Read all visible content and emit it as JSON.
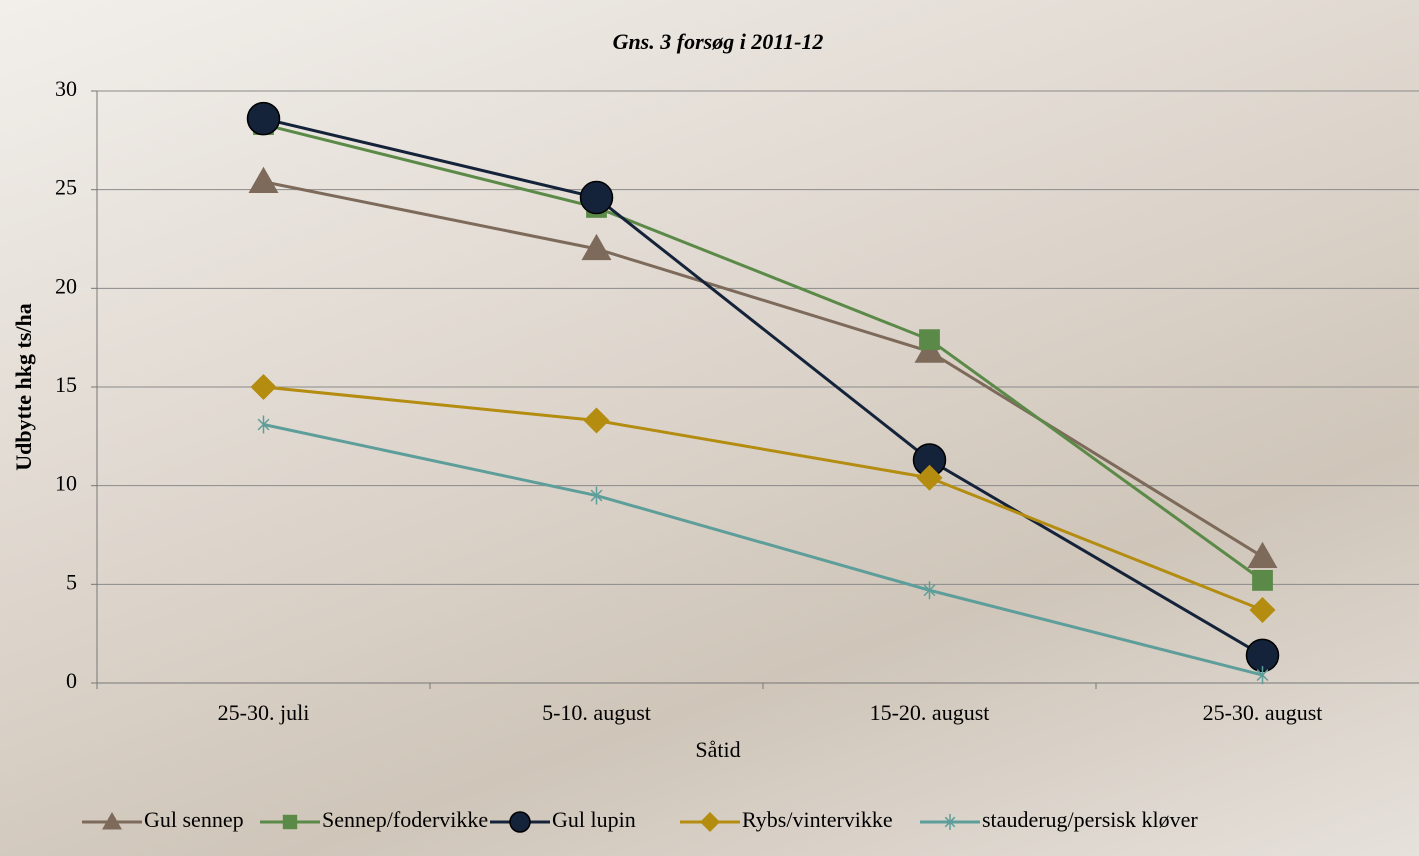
{
  "chart_data": {
    "type": "line",
    "title": "Gns. 3 forsøg i 2011-12",
    "x_label": "Såtid",
    "y_label": "Udbytte hkg ts/ha",
    "categories": [
      "25-30. juli",
      "5-10. august",
      "15-20. august",
      "25-30. august"
    ],
    "series": [
      {
        "name": "Gul sennep",
        "color": "#7d6a5a",
        "marker": "triangle",
        "values": [
          25.4,
          22.0,
          16.8,
          6.4
        ]
      },
      {
        "name": "Sennep/fodervikke",
        "color": "#5b8a48",
        "marker": "square",
        "values": [
          28.3,
          24.1,
          17.4,
          5.2
        ]
      },
      {
        "name": "Gul lupin",
        "color": "#15233a",
        "marker": "circle",
        "values": [
          28.6,
          24.6,
          11.3,
          1.4
        ]
      },
      {
        "name": "Rybs/vintervikke",
        "color": "#b48c10",
        "marker": "diamond",
        "values": [
          15.0,
          13.3,
          10.4,
          3.7
        ]
      },
      {
        "name": "stauderug/persisk kløver",
        "color": "#5e9e9a",
        "marker": "asterisk",
        "values": [
          13.1,
          9.5,
          4.7,
          0.4
        ]
      }
    ],
    "ylim": [
      0,
      30
    ],
    "yticks": [
      0,
      5,
      10,
      15,
      20,
      25,
      30
    ],
    "grid": true,
    "legend": "bottom"
  }
}
